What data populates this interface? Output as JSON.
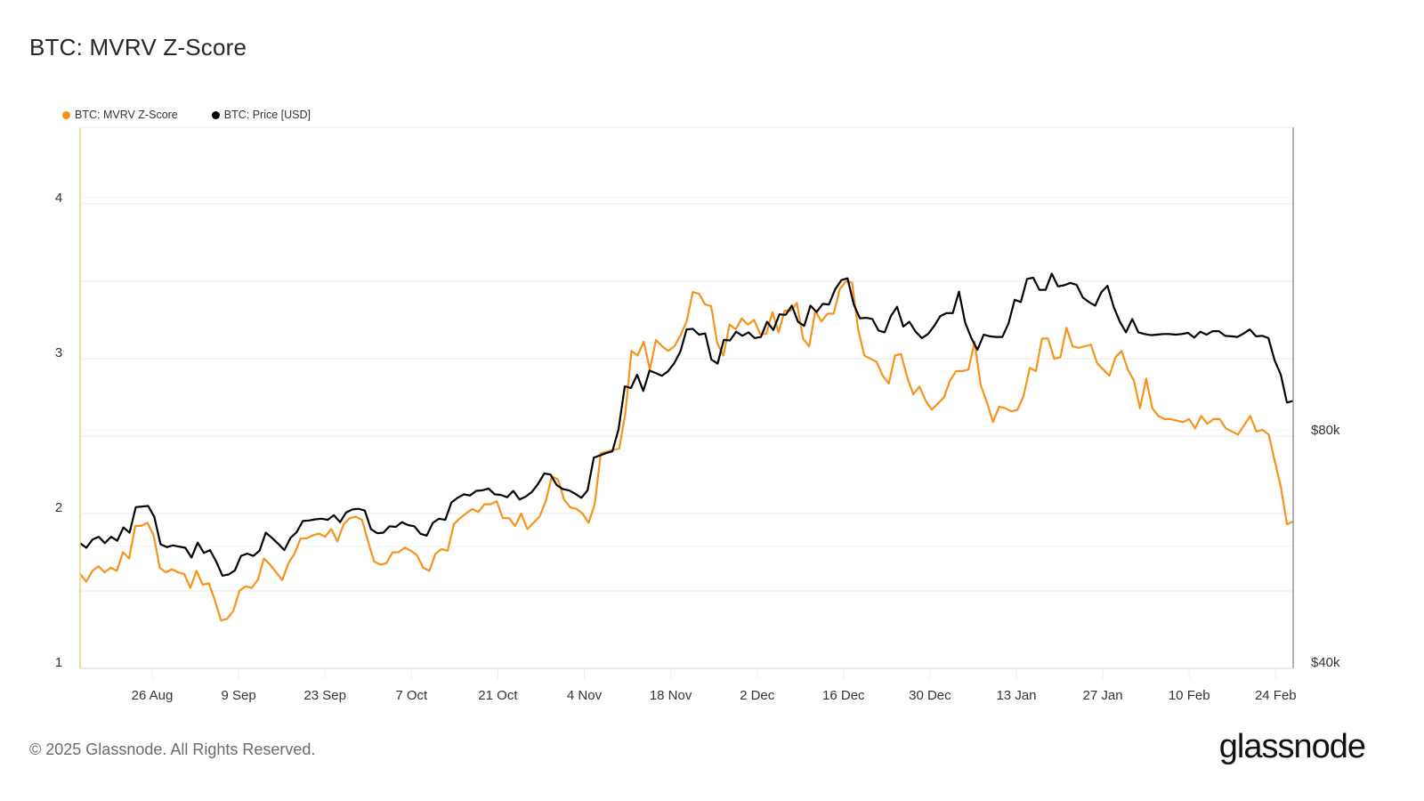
{
  "title": "BTC: MVRV Z-Score",
  "legend": [
    {
      "label": "BTC: MVRV Z-Score",
      "color": "#f7931a"
    },
    {
      "label": "BTC: Price [USD]",
      "color": "#000000"
    }
  ],
  "footer": {
    "copyright": "© 2025 Glassnode. All Rights Reserved.",
    "brand": "glassnode"
  },
  "colors": {
    "zscore": "#f7931a",
    "price": "#000000",
    "grid": "#eeeeee",
    "left_axis": "#f9c98a",
    "right_axis": "#999999"
  },
  "chart_data": {
    "type": "line",
    "title": "BTC: MVRV Z-Score",
    "xlabel": "",
    "ylabel_left": "MVRV Z-Score",
    "ylabel_right": "Price [USD]",
    "x_ticks": [
      "26 Aug",
      "9 Sep",
      "23 Sep",
      "7 Oct",
      "21 Oct",
      "4 Nov",
      "18 Nov",
      "2 Dec",
      "16 Dec",
      "30 Dec",
      "13 Jan",
      "27 Jan",
      "10 Feb",
      "24 Feb"
    ],
    "y_left_ticks": [
      1,
      2,
      3,
      4
    ],
    "y_left_range": [
      1,
      4.5
    ],
    "y_right_ticks": [
      "$40k",
      "$80k"
    ],
    "y_right_ticks_values": [
      40000,
      80000
    ],
    "grid": true,
    "legend_position": "top-left",
    "x_start": "2024-08-15",
    "x_end": "2025-02-27",
    "series": [
      {
        "name": "BTC: MVRV Z-Score",
        "axis": "left",
        "color": "#f7931a",
        "values": [
          1.61,
          1.56,
          1.63,
          1.66,
          1.62,
          1.65,
          1.63,
          1.75,
          1.71,
          1.92,
          1.92,
          1.94,
          1.86,
          1.65,
          1.62,
          1.64,
          1.62,
          1.61,
          1.52,
          1.63,
          1.54,
          1.55,
          1.44,
          1.31,
          1.32,
          1.37,
          1.5,
          1.53,
          1.52,
          1.57,
          1.71,
          1.67,
          1.62,
          1.57,
          1.68,
          1.74,
          1.84,
          1.84,
          1.86,
          1.87,
          1.85,
          1.9,
          1.82,
          1.93,
          1.97,
          1.98,
          1.96,
          1.82,
          1.69,
          1.67,
          1.68,
          1.75,
          1.75,
          1.78,
          1.76,
          1.73,
          1.65,
          1.63,
          1.74,
          1.77,
          1.76,
          1.93,
          1.97,
          2.0,
          2.03,
          2.01,
          2.06,
          2.06,
          2.08,
          1.97,
          1.97,
          1.92,
          2.0,
          1.9,
          1.94,
          1.98,
          2.08,
          2.24,
          2.22,
          2.09,
          2.04,
          2.03,
          2.0,
          1.94,
          2.06,
          2.39,
          2.4,
          2.41,
          2.42,
          2.65,
          3.05,
          3.02,
          3.11,
          2.93,
          3.12,
          3.08,
          3.05,
          3.08,
          3.15,
          3.24,
          3.43,
          3.42,
          3.35,
          3.34,
          3.1,
          3.02,
          3.22,
          3.19,
          3.26,
          3.22,
          3.25,
          3.16,
          3.16,
          3.3,
          3.17,
          3.31,
          3.31,
          3.36,
          3.13,
          3.08,
          3.31,
          3.24,
          3.29,
          3.29,
          3.45,
          3.5,
          3.49,
          3.19,
          3.02,
          3.0,
          2.98,
          2.89,
          2.84,
          3.02,
          3.03,
          2.88,
          2.77,
          2.82,
          2.73,
          2.67,
          2.71,
          2.75,
          2.86,
          2.92,
          2.92,
          2.93,
          3.11,
          2.83,
          2.72,
          2.59,
          2.69,
          2.68,
          2.66,
          2.67,
          2.76,
          2.94,
          2.92,
          3.13,
          3.13,
          3.0,
          3.01,
          3.2,
          3.08,
          3.07,
          3.08,
          3.09,
          2.97,
          2.93,
          2.89,
          3.01,
          3.05,
          2.93,
          2.86,
          2.68,
          2.87,
          2.68,
          2.63,
          2.61,
          2.61,
          2.6,
          2.59,
          2.61,
          2.55,
          2.63,
          2.58,
          2.61,
          2.61,
          2.55,
          2.53,
          2.51,
          2.57,
          2.63,
          2.53,
          2.54,
          2.51,
          2.34,
          2.17,
          1.93,
          1.95
        ]
      },
      {
        "name": "BTC: Price [USD]",
        "axis": "right",
        "color": "#000000",
        "values": [
          60500,
          59700,
          61100,
          61600,
          60500,
          61600,
          60900,
          63200,
          62300,
          66700,
          66800,
          66900,
          65000,
          60300,
          59800,
          60100,
          59900,
          59700,
          58000,
          60600,
          58800,
          59300,
          57300,
          54900,
          55100,
          55800,
          58300,
          58700,
          58300,
          59200,
          62300,
          61400,
          60400,
          59300,
          61400,
          62400,
          64300,
          64400,
          64600,
          64700,
          64500,
          65300,
          64100,
          65800,
          66300,
          66400,
          66100,
          62900,
          62200,
          62300,
          63400,
          63300,
          64100,
          63600,
          63400,
          62100,
          61800,
          64000,
          64700,
          64500,
          67500,
          68300,
          68900,
          68700,
          69500,
          69600,
          69900,
          68900,
          68800,
          68400,
          69500,
          68000,
          68500,
          69300,
          70700,
          72500,
          72300,
          70500,
          69800,
          69600,
          69000,
          68300,
          69600,
          75200,
          75600,
          76000,
          76300,
          80100,
          87500,
          87200,
          89500,
          86700,
          90200,
          89800,
          89300,
          90100,
          91500,
          93500,
          97300,
          97400,
          96400,
          96600,
          92100,
          91400,
          95500,
          95400,
          96900,
          96200,
          96800,
          95800,
          96000,
          98600,
          97200,
          99900,
          99800,
          101400,
          98600,
          97900,
          101400,
          100300,
          101700,
          101600,
          104200,
          105800,
          106100,
          101600,
          99200,
          99300,
          99100,
          97100,
          96800,
          99600,
          101200,
          97800,
          98600,
          96900,
          95800,
          96500,
          97900,
          99600,
          100100,
          100100,
          103800,
          98500,
          95800,
          93800,
          96400,
          96100,
          96000,
          96000,
          98300,
          102400,
          102000,
          106000,
          106200,
          104100,
          104100,
          106900,
          104700,
          104900,
          105300,
          105000,
          102800,
          102000,
          101400,
          103700,
          104800,
          101200,
          98600,
          96800,
          99100,
          96800,
          96500,
          96300,
          96400,
          96500,
          96500,
          96400,
          96500,
          96700,
          95900,
          96900,
          96400,
          97000,
          97000,
          96200,
          96100,
          96000,
          96600,
          97300,
          96100,
          96200,
          95800,
          92000,
          89500,
          84700,
          85000
        ]
      }
    ]
  }
}
